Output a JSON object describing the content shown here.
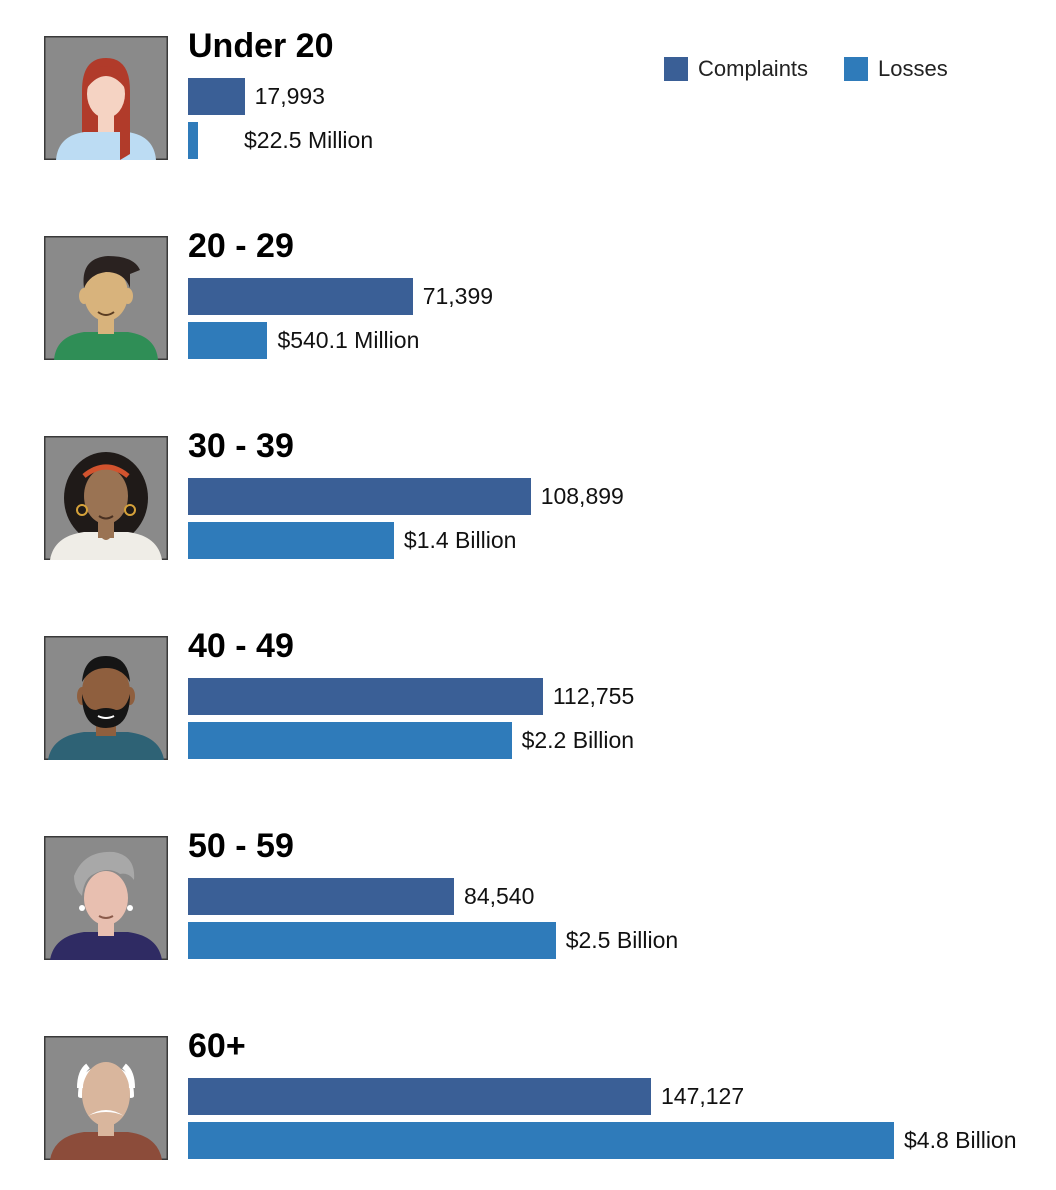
{
  "chart_data": {
    "type": "bar",
    "orientation": "horizontal",
    "title": "",
    "categories": [
      "Under 20",
      "20 - 29",
      "30 - 39",
      "40 - 49",
      "50 - 59",
      "60+"
    ],
    "series": [
      {
        "name": "Complaints",
        "color": "#3a5f96",
        "values": [
          17993,
          71399,
          108899,
          112755,
          84540,
          147127
        ],
        "labels": [
          "17,993",
          "71,399",
          "108,899",
          "112,755",
          "84,540",
          "147,127"
        ]
      },
      {
        "name": "Losses",
        "color": "#2f7bba",
        "values": [
          22.5,
          540.1,
          1400,
          2200,
          2500,
          4800
        ],
        "unit": "USD millions",
        "labels": [
          "$22.5 Million",
          "$540.1 Million",
          "$1.4 Billion",
          "$2.2 Billion",
          "$2.5 Billion",
          "$4.8 Billion"
        ]
      }
    ],
    "legend_position": "top-right"
  },
  "avatars": [
    {
      "icon": "young-woman-red-hair-icon",
      "skin": "#f5d3c3",
      "hair": "#b13b2a",
      "shirt": "#bcdcf3"
    },
    {
      "icon": "young-man-dark-hair-icon",
      "skin": "#d8b37c",
      "hair": "#2a2220",
      "shirt": "#2f8e56"
    },
    {
      "icon": "woman-curly-hair-icon",
      "skin": "#9a7353",
      "hair": "#1f1a18",
      "shirt": "#efede7"
    },
    {
      "icon": "man-beard-icon",
      "skin": "#8f5f3e",
      "hair": "#151515",
      "shirt": "#2e6275"
    },
    {
      "icon": "older-woman-gray-hair-icon",
      "skin": "#e8bfb0",
      "hair": "#a8a8a8",
      "shirt": "#2f2b63"
    },
    {
      "icon": "elderly-man-mustache-icon",
      "skin": "#d9b69d",
      "hair": "#ffffff",
      "shirt": "#8c4c3a"
    }
  ]
}
